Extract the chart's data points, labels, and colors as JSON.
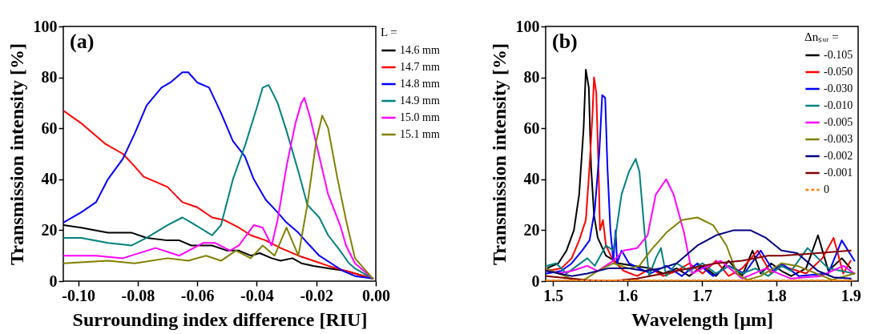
{
  "chart_data": [
    {
      "type": "line",
      "title": "(a)",
      "xlabel": "Surrounding index difference [RIU]",
      "ylabel": "Transmission intensity [%]",
      "legend_title": "L =",
      "legend": "right",
      "grid": false,
      "xlim": [
        -0.105,
        0.0
      ],
      "xticks": [
        {
          "value": -0.1,
          "label": "-0.10"
        },
        {
          "value": -0.08,
          "label": "-0.08"
        },
        {
          "value": -0.06,
          "label": "-0.06"
        },
        {
          "value": -0.04,
          "label": "-0.04"
        },
        {
          "value": -0.02,
          "label": "-0.02"
        },
        {
          "value": 0,
          "label": "0.00"
        }
      ],
      "ylim": [
        0,
        100
      ],
      "yticks": [
        0,
        20,
        40,
        60,
        80,
        100
      ],
      "series": [
        {
          "name": "14.6 mm",
          "color": "#000000",
          "x": [
            -0.105,
            -0.099,
            -0.09,
            -0.082,
            -0.077,
            -0.07,
            -0.066,
            -0.062,
            -0.055,
            -0.05,
            -0.046,
            -0.042,
            -0.039,
            -0.035,
            -0.032,
            -0.028,
            -0.025,
            -0.021,
            -0.016,
            -0.01,
            -0.007,
            -0.001
          ],
          "values": [
            22,
            21,
            19,
            19,
            17,
            16,
            16,
            14,
            14,
            12,
            12,
            10,
            11,
            9,
            8,
            9,
            7,
            6,
            5,
            4,
            3,
            1
          ]
        },
        {
          "name": "14.7 mm",
          "color": "#ff0000",
          "x": [
            -0.105,
            -0.099,
            -0.091,
            -0.085,
            -0.081,
            -0.078,
            -0.07,
            -0.065,
            -0.06,
            -0.055,
            -0.051,
            -0.046,
            -0.042,
            -0.037,
            -0.032,
            -0.026,
            -0.021,
            -0.016,
            -0.01,
            -0.007,
            -0.001
          ],
          "values": [
            67,
            62,
            54,
            50,
            45,
            41,
            37,
            31,
            29,
            25,
            24,
            21,
            18,
            16,
            13,
            10,
            8,
            6,
            4,
            3,
            1
          ]
        },
        {
          "name": "14.8 mm",
          "color": "#0000ff",
          "x": [
            -0.105,
            -0.099,
            -0.094,
            -0.09,
            -0.085,
            -0.081,
            -0.077,
            -0.072,
            -0.069,
            -0.065,
            -0.063,
            -0.06,
            -0.056,
            -0.052,
            -0.048,
            -0.044,
            -0.041,
            -0.037,
            -0.033,
            -0.03,
            -0.026,
            -0.023,
            -0.019,
            -0.015,
            -0.011,
            -0.007,
            -0.001
          ],
          "values": [
            23,
            27,
            31,
            40,
            48,
            58,
            69,
            76,
            78,
            82,
            82,
            78,
            76,
            66,
            55,
            49,
            40,
            32,
            27,
            23,
            19,
            15,
            10,
            7,
            4,
            2,
            1
          ]
        },
        {
          "name": "14.9 mm",
          "color": "#008080",
          "x": [
            -0.105,
            -0.099,
            -0.09,
            -0.082,
            -0.077,
            -0.07,
            -0.065,
            -0.062,
            -0.055,
            -0.052,
            -0.048,
            -0.044,
            -0.04,
            -0.038,
            -0.036,
            -0.033,
            -0.03,
            -0.026,
            -0.023,
            -0.019,
            -0.016,
            -0.012,
            -0.009,
            -0.007,
            -0.001
          ],
          "values": [
            17,
            17,
            15,
            14,
            17,
            22,
            25,
            23,
            18,
            22,
            40,
            53,
            68,
            76,
            77,
            70,
            59,
            43,
            30,
            25,
            18,
            12,
            7,
            5,
            1
          ]
        },
        {
          "name": "15.0 mm",
          "color": "#ff00ff",
          "x": [
            -0.105,
            -0.094,
            -0.085,
            -0.074,
            -0.066,
            -0.058,
            -0.054,
            -0.049,
            -0.046,
            -0.041,
            -0.038,
            -0.035,
            -0.033,
            -0.03,
            -0.027,
            -0.025,
            -0.024,
            -0.022,
            -0.019,
            -0.016,
            -0.012,
            -0.01,
            -0.007,
            -0.001
          ],
          "values": [
            10,
            10,
            9,
            13,
            10,
            15,
            15,
            12,
            14,
            22,
            21,
            14,
            24,
            45,
            62,
            70,
            72,
            64,
            49,
            34,
            22,
            14,
            7,
            1
          ]
        },
        {
          "name": "15.1 mm",
          "color": "#808000",
          "x": [
            -0.105,
            -0.09,
            -0.081,
            -0.07,
            -0.063,
            -0.057,
            -0.052,
            -0.047,
            -0.042,
            -0.038,
            -0.034,
            -0.03,
            -0.026,
            -0.023,
            -0.02,
            -0.018,
            -0.016,
            -0.013,
            -0.01,
            -0.008,
            -0.007,
            -0.001
          ],
          "values": [
            7,
            8,
            7,
            9,
            8,
            10,
            8,
            12,
            9,
            14,
            10,
            21,
            10,
            30,
            55,
            65,
            60,
            41,
            24,
            14,
            9,
            1
          ]
        }
      ]
    },
    {
      "type": "line",
      "title": "(b)",
      "xlabel": "Wavelength [μm]",
      "ylabel": "Transmission intensity [%]",
      "legend_title": "Δnₛᵤᵣ =",
      "legend": "top right",
      "grid": false,
      "xlim": [
        1.49,
        1.91
      ],
      "xticks": [
        1.5,
        1.6,
        1.7,
        1.8,
        1.9
      ],
      "ylim": [
        0,
        100
      ],
      "yticks": [
        0,
        20,
        40,
        60,
        80,
        100
      ],
      "series": [
        {
          "name": "-0.105",
          "color": "#000000",
          "x": [
            1.491,
            1.507,
            1.518,
            1.528,
            1.535,
            1.541,
            1.544,
            1.548,
            1.551,
            1.555,
            1.56,
            1.571,
            1.588,
            1.609,
            1.631,
            1.648,
            1.666,
            1.683,
            1.701,
            1.719,
            1.736,
            1.754,
            1.768,
            1.779,
            1.793,
            1.807,
            1.82,
            1.84,
            1.856,
            1.87,
            1.888,
            1.9
          ],
          "values": [
            5,
            7,
            12,
            20,
            34,
            60,
            83,
            76,
            45,
            26,
            17,
            10,
            7,
            6,
            5,
            3,
            5,
            2,
            6,
            2,
            8,
            2,
            12,
            3,
            7,
            4,
            2,
            5,
            18,
            4,
            9,
            5
          ]
        },
        {
          "name": "-0.050",
          "color": "#ff0000",
          "x": [
            1.491,
            1.511,
            1.525,
            1.535,
            1.544,
            1.549,
            1.553,
            1.555,
            1.558,
            1.561,
            1.563,
            1.567,
            1.571,
            1.581,
            1.595,
            1.613,
            1.631,
            1.648,
            1.666,
            1.683,
            1.701,
            1.719,
            1.736,
            1.754,
            1.775,
            1.793,
            1.807,
            1.84,
            1.862,
            1.877,
            1.89,
            1.9
          ],
          "values": [
            4,
            5,
            9,
            16,
            24,
            45,
            66,
            80,
            74,
            45,
            20,
            24,
            14,
            8,
            4,
            2,
            5,
            2,
            4,
            7,
            3,
            8,
            2,
            5,
            12,
            3,
            6,
            3,
            9,
            17,
            3,
            8
          ]
        },
        {
          "name": "-0.030",
          "color": "#0000ff",
          "x": [
            1.491,
            1.511,
            1.525,
            1.539,
            1.549,
            1.556,
            1.562,
            1.566,
            1.57,
            1.573,
            1.577,
            1.581,
            1.584,
            1.586,
            1.592,
            1.602,
            1.616,
            1.631,
            1.652,
            1.673,
            1.694,
            1.715,
            1.736,
            1.757,
            1.779,
            1.796,
            1.807,
            1.83,
            1.87,
            1.888,
            1.905
          ],
          "values": [
            3,
            4,
            7,
            12,
            16,
            28,
            50,
            73,
            72,
            45,
            20,
            8,
            20,
            7,
            12,
            7,
            5,
            3,
            6,
            2,
            7,
            2,
            6,
            3,
            12,
            4,
            7,
            2,
            3,
            16,
            8
          ]
        },
        {
          "name": "-0.010",
          "color": "#008080",
          "x": [
            1.491,
            1.504,
            1.518,
            1.532,
            1.546,
            1.556,
            1.571,
            1.581,
            1.592,
            1.602,
            1.611,
            1.616,
            1.623,
            1.629,
            1.638,
            1.645,
            1.652,
            1.666,
            1.683,
            1.701,
            1.719,
            1.736,
            1.754,
            1.772,
            1.789,
            1.807,
            1.82,
            1.842,
            1.87,
            1.905
          ],
          "values": [
            6,
            7,
            3,
            6,
            9,
            6,
            14,
            12,
            34,
            43,
            48,
            43,
            19,
            2,
            9,
            13,
            2,
            7,
            4,
            7,
            3,
            6,
            3,
            5,
            2,
            6,
            4,
            13,
            5,
            3
          ]
        },
        {
          "name": "-0.005",
          "color": "#ff00ff",
          "x": [
            1.491,
            1.507,
            1.525,
            1.546,
            1.56,
            1.581,
            1.595,
            1.613,
            1.627,
            1.638,
            1.652,
            1.662,
            1.676,
            1.687,
            1.701,
            1.725,
            1.754,
            1.786,
            1.82,
            1.86,
            1.89,
            1.905
          ],
          "values": [
            5,
            3,
            4,
            6,
            4,
            8,
            12,
            13,
            18,
            34,
            40,
            34,
            19,
            3,
            5,
            8,
            1,
            5,
            1,
            2,
            6,
            3
          ]
        },
        {
          "name": "-0.003",
          "color": "#808000",
          "x": [
            1.491,
            1.507,
            1.525,
            1.542,
            1.56,
            1.581,
            1.602,
            1.616,
            1.631,
            1.652,
            1.673,
            1.694,
            1.715,
            1.733,
            1.747,
            1.761,
            1.779,
            1.807,
            1.828,
            1.875,
            1.905
          ],
          "values": [
            5,
            3,
            1,
            0.5,
            4,
            7,
            5,
            6,
            12,
            19,
            24,
            25,
            22,
            14,
            3,
            0.5,
            2,
            7,
            6,
            0.5,
            3
          ]
        },
        {
          "name": "-0.002",
          "color": "#000080",
          "x": [
            1.491,
            1.525,
            1.546,
            1.574,
            1.602,
            1.623,
            1.645,
            1.666,
            1.694,
            1.719,
            1.743,
            1.765,
            1.786,
            1.807,
            1.828,
            1.856,
            1.877,
            1.9
          ],
          "values": [
            4,
            2,
            3,
            5,
            5,
            4,
            5,
            7,
            14,
            18,
            20,
            20,
            17,
            12,
            11,
            4,
            1.5,
            1
          ]
        },
        {
          "name": "-0.001",
          "color": "#800000",
          "x": [
            1.491,
            1.542,
            1.578,
            1.613,
            1.648,
            1.683,
            1.719,
            1.754,
            1.789,
            1.807,
            1.856,
            1.9
          ],
          "values": [
            2,
            0.5,
            0,
            1,
            3,
            5,
            7,
            8,
            10,
            10,
            11,
            12
          ]
        },
        {
          "name": "0",
          "color": "#ff8000",
          "line_style": "dashed",
          "x": [
            1.491,
            1.6,
            1.7,
            1.8,
            1.905
          ],
          "values": [
            0.3,
            0.3,
            0.3,
            0.3,
            0.3
          ]
        }
      ]
    }
  ]
}
